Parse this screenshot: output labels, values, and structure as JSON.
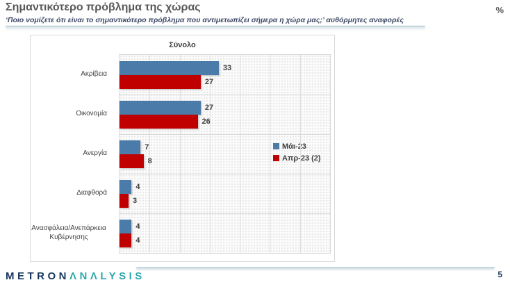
{
  "header": {
    "title": "Σημαντικότερο πρόβλημα της χώρας",
    "subtitle": "‘Ποιο νομίζετε ότι  είναι το σημαντικότερο πρόβλημα που αντιμετωπίζει σήμερα η χώρα μας;’ αυθόρμητες αναφορές",
    "unit": "%"
  },
  "chart_data": {
    "type": "bar",
    "orientation": "horizontal",
    "title": "Σύνολο",
    "categories": [
      "Ακρίβεια",
      "Οικονομία",
      "Ανεργία",
      "Διαφθορά",
      "Ανασφάλεια/Ανεπάρκεια Κυβέρνησης"
    ],
    "series": [
      {
        "name": "Μάι-23",
        "color": "#4b7ba9",
        "values": [
          33,
          27,
          7,
          4,
          4
        ]
      },
      {
        "name": "Απρ-23 (2)",
        "color": "#c00000",
        "values": [
          27,
          26,
          8,
          3,
          4
        ]
      }
    ],
    "xlim": [
      0,
      70
    ],
    "gridline_interval": 10,
    "grid": true,
    "legend_position": "inside-right-middle",
    "value_labels": true
  },
  "footer": {
    "logo_part1": "METRON",
    "logo_part2": "ΛNΛLYSIS",
    "page_number": "5"
  },
  "colors": {
    "series1": "#4b7ba9",
    "series2": "#c00000",
    "title_text": "#595959",
    "subtitle_text": "#3e4965",
    "axis_text": "#404040",
    "logo_navy": "#17375e",
    "logo_teal": "#2fa7ac",
    "rule_teal": "#aec9d3"
  }
}
